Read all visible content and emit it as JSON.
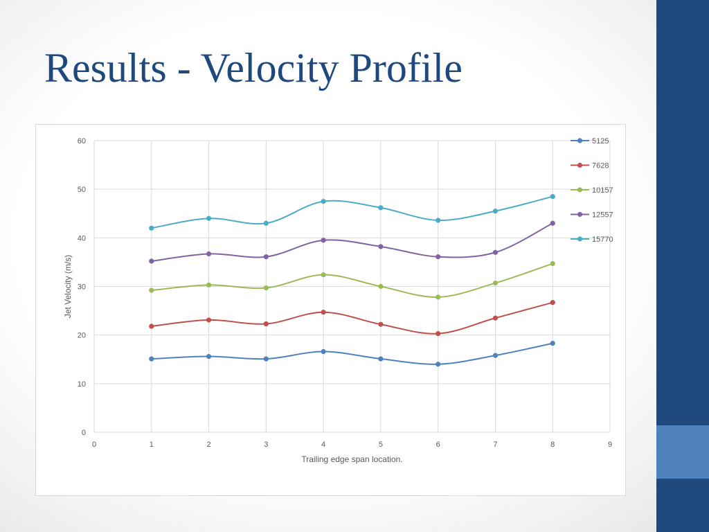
{
  "slide": {
    "title": "Results - Velocity Profile",
    "colors": {
      "title": "#1f497d",
      "side_bar": "#1f497d",
      "side_accent": "#4f81bd"
    }
  },
  "chart_data": {
    "type": "scatter",
    "style": "smooth-line-with-markers",
    "xlabel": "Trailing edge span location.",
    "ylabel": "Jet Velocity (m/s)",
    "xlim": [
      0,
      9
    ],
    "ylim": [
      0,
      60
    ],
    "x_ticks": [
      "0",
      "1",
      "2",
      "3",
      "4",
      "5",
      "6",
      "7",
      "8",
      "9"
    ],
    "y_ticks": [
      "0",
      "10",
      "20",
      "30",
      "40",
      "50",
      "60"
    ],
    "grid": true,
    "legend_position": "right",
    "series": [
      {
        "name": "5125",
        "color": "#4f81bd",
        "x": [
          1,
          2,
          3,
          4,
          5,
          6,
          7,
          8
        ],
        "y": [
          15.1,
          15.6,
          15.1,
          16.6,
          15.1,
          14.0,
          15.8,
          18.3
        ]
      },
      {
        "name": "7628",
        "color": "#c0504d",
        "x": [
          1,
          2,
          3,
          4,
          5,
          6,
          7,
          8
        ],
        "y": [
          21.8,
          23.1,
          22.3,
          24.7,
          22.2,
          20.3,
          23.5,
          26.7
        ]
      },
      {
        "name": "10157",
        "color": "#9bbb59",
        "x": [
          1,
          2,
          3,
          4,
          5,
          6,
          7,
          8
        ],
        "y": [
          29.2,
          30.3,
          29.7,
          32.4,
          30.0,
          27.8,
          30.7,
          34.7
        ]
      },
      {
        "name": "12557",
        "color": "#8064a2",
        "x": [
          1,
          2,
          3,
          4,
          5,
          6,
          7,
          8
        ],
        "y": [
          35.2,
          36.7,
          36.1,
          39.5,
          38.2,
          36.1,
          37.0,
          43.0
        ]
      },
      {
        "name": "15770",
        "color": "#4bacc6",
        "x": [
          1,
          2,
          3,
          4,
          5,
          6,
          7,
          8
        ],
        "y": [
          42.0,
          44.0,
          43.0,
          47.5,
          46.2,
          43.6,
          45.5,
          48.5
        ]
      }
    ]
  }
}
